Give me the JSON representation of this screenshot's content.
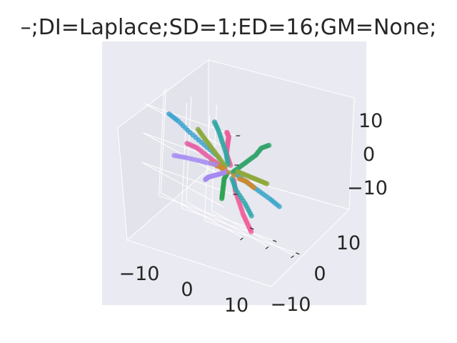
{
  "chart_data": {
    "type": "scatter",
    "title": "–;DI=Laplace;SD=1;ED=16;GM=None;",
    "axis_ticks": {
      "x": [
        "−10",
        "0",
        "10"
      ],
      "y": [
        "10",
        "0",
        "−10"
      ],
      "z": [
        "10",
        "0",
        "−10"
      ]
    },
    "grid": true,
    "series": [
      {
        "color": "#f0609b",
        "points": [
          [
            -1,
            -3,
            -2
          ],
          [
            -3,
            -6,
            -5
          ],
          [
            -4,
            -9,
            -8
          ],
          [
            -5,
            -12,
            -11
          ],
          [
            -6,
            -15,
            -13
          ],
          [
            -7,
            -18,
            -15
          ]
        ]
      },
      {
        "color": "#e9609c",
        "points": [
          [
            1,
            1,
            2
          ],
          [
            2,
            4,
            5
          ],
          [
            4,
            6,
            7
          ],
          [
            6,
            8,
            9
          ],
          [
            8,
            10,
            10
          ],
          [
            9,
            12,
            11
          ]
        ]
      },
      {
        "color": "#e562a6",
        "points": [
          [
            -1,
            1,
            0
          ],
          [
            -3,
            3,
            1
          ],
          [
            -5,
            5,
            2
          ],
          [
            -7,
            7,
            3
          ],
          [
            -9,
            9,
            3
          ]
        ]
      },
      {
        "color": "#3ba6c8",
        "points": [
          [
            1,
            -1,
            0
          ],
          [
            3,
            -4,
            -1
          ],
          [
            5,
            -7,
            -2
          ],
          [
            7,
            -10,
            -3
          ],
          [
            8,
            -13,
            -4
          ]
        ]
      },
      {
        "color": "#3ba3cf",
        "points": [
          [
            -2,
            3,
            3
          ],
          [
            -5,
            6,
            5
          ],
          [
            -8,
            9,
            7
          ],
          [
            -10,
            12,
            9
          ],
          [
            -12,
            14,
            10
          ]
        ]
      },
      {
        "color": "#2fa8a3",
        "points": [
          [
            0,
            1,
            2
          ],
          [
            1,
            3,
            5
          ],
          [
            2,
            6,
            8
          ],
          [
            3,
            9,
            11
          ],
          [
            4,
            12,
            13
          ]
        ]
      },
      {
        "color": "#2da8ab",
        "points": [
          [
            0,
            -1,
            -2
          ],
          [
            0,
            -3,
            -5
          ],
          [
            1,
            -6,
            -8
          ],
          [
            1,
            -9,
            -11
          ]
        ]
      },
      {
        "color": "#32a46a",
        "points": [
          [
            1,
            0,
            0
          ],
          [
            3,
            -1,
            3
          ],
          [
            5,
            -2,
            6
          ],
          [
            7,
            -3,
            9
          ],
          [
            9,
            -3,
            12
          ],
          [
            11,
            -4,
            14
          ]
        ]
      },
      {
        "color": "#30a354",
        "points": [
          [
            -1,
            0,
            -1
          ],
          [
            -3,
            -1,
            -3
          ],
          [
            -5,
            -3,
            -5
          ],
          [
            -7,
            -5,
            -7
          ],
          [
            -9,
            -7,
            -9
          ]
        ]
      },
      {
        "color": "#8ba83a",
        "points": [
          [
            -1,
            1,
            1
          ],
          [
            -2,
            3,
            3
          ],
          [
            -3,
            5,
            5
          ],
          [
            -4,
            7,
            7
          ],
          [
            -5,
            9,
            9
          ]
        ]
      },
      {
        "color": "#8da83a",
        "points": [
          [
            2,
            -1,
            1
          ],
          [
            4,
            -2,
            1
          ],
          [
            6,
            -3,
            1
          ],
          [
            8,
            -4,
            1
          ],
          [
            10,
            -5,
            1
          ]
        ]
      },
      {
        "color": "#cc8a2f",
        "points": [
          [
            -1,
            2,
            0
          ],
          [
            -2,
            3,
            0
          ],
          [
            -3,
            5,
            0
          ],
          [
            2,
            -2,
            -1
          ],
          [
            4,
            -3,
            -1
          ],
          [
            6,
            -4,
            -2
          ]
        ]
      },
      {
        "color": "#a58af0",
        "points": [
          [
            -2,
            0,
            -1
          ],
          [
            -5,
            -1,
            -2
          ],
          [
            -8,
            -2,
            -3
          ],
          [
            -11,
            -3,
            -4
          ],
          [
            -13,
            -4,
            -5
          ]
        ]
      },
      {
        "color": "#a68cf2",
        "points": [
          [
            -2,
            4,
            0
          ],
          [
            -5,
            7,
            -1
          ],
          [
            -8,
            10,
            -2
          ],
          [
            -11,
            12,
            -3
          ]
        ]
      }
    ]
  }
}
